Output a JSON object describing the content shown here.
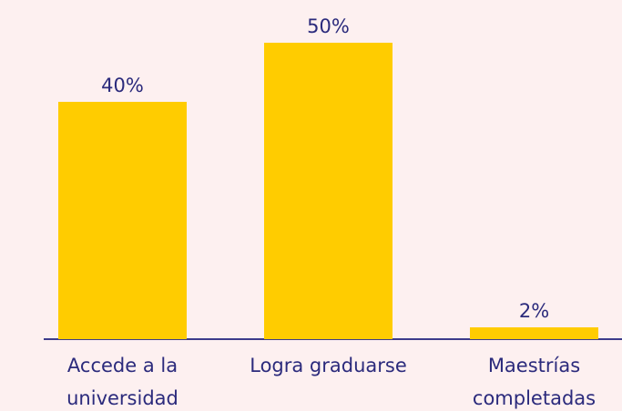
{
  "chart_data": {
    "type": "bar",
    "categories": [
      "Accede a la universidad",
      "Logra graduarse",
      "Maestrías completadas"
    ],
    "values": [
      40,
      50,
      2
    ],
    "value_labels": [
      "40%",
      "50%",
      "2%"
    ],
    "color": "#ffcc00"
  }
}
